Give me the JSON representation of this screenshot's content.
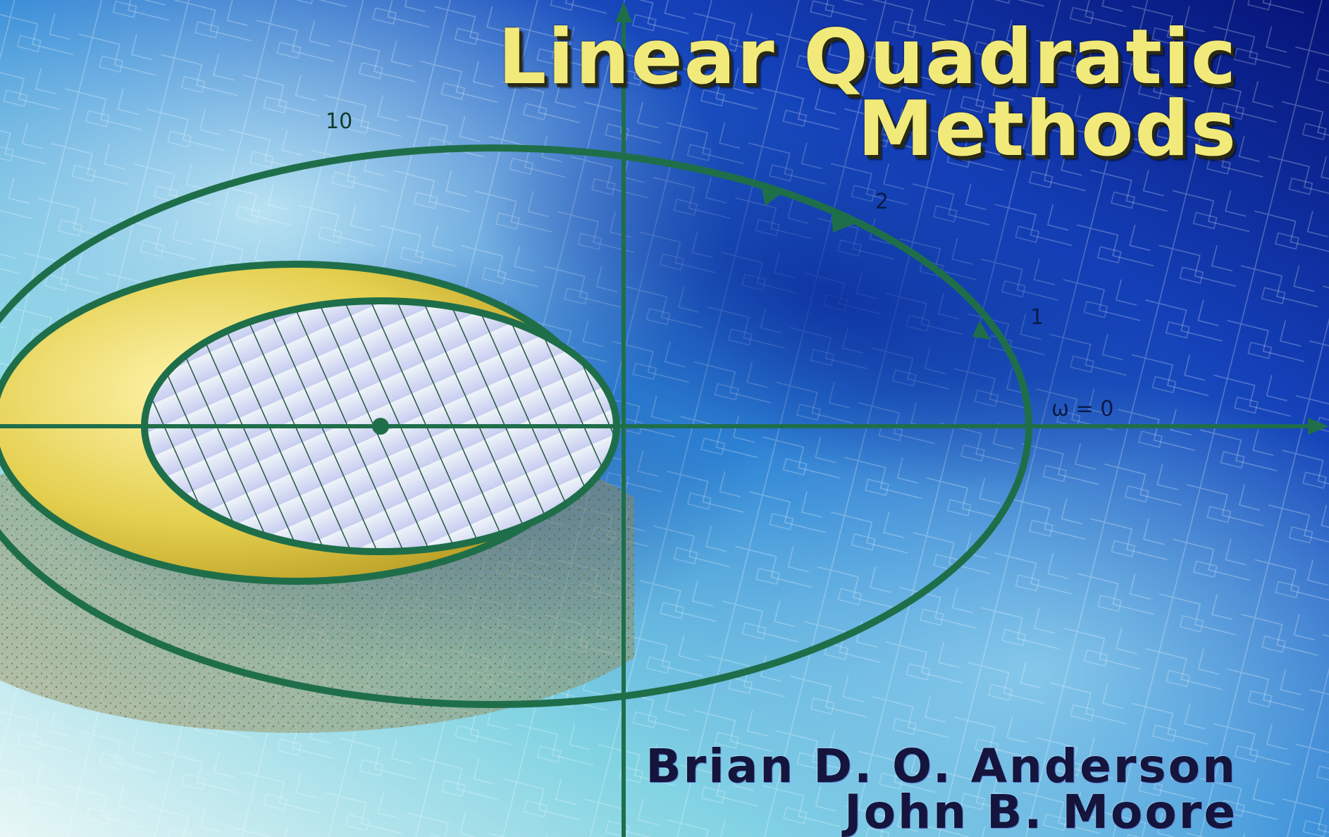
{
  "cover": {
    "title_line_1": "Linear Quadratic",
    "title_line_2": "Methods",
    "author_1": "Brian D. O. Anderson",
    "author_2": "John B. Moore"
  },
  "plot_labels": {
    "label_10": "10",
    "label_2": "2",
    "label_1": "1",
    "label_omega": "ω = 0"
  },
  "colors": {
    "title": "#f1ea7a",
    "author": "#14143c",
    "curve": "#1f6e4a",
    "crescent": "#e9d65a",
    "background_dark": "#0a1f8a",
    "background_light": "#bfeaf0"
  }
}
